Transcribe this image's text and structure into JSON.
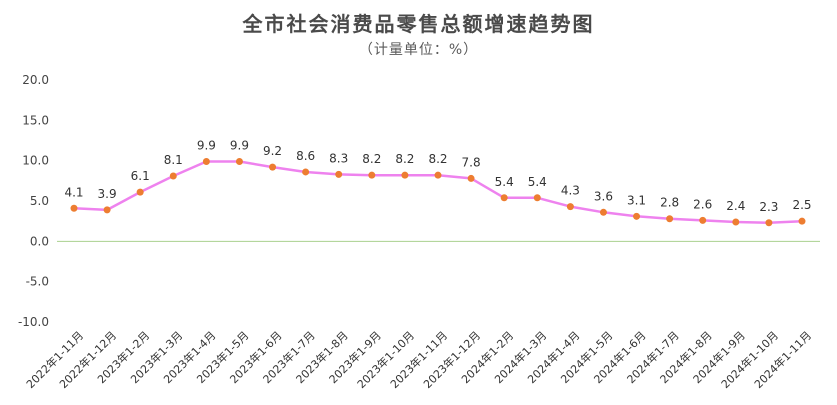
{
  "title": "全市社会消费品零售总额增速趋势图",
  "subtitle": "（计量单位：%）",
  "colors": {
    "line": "#ee82ee",
    "marker": "#ed7d31",
    "zero_line": "#a9d18e"
  },
  "chart_data": {
    "type": "line",
    "title": "全市社会消费品零售总额增速趋势图",
    "subtitle": "（计量单位：%）",
    "categories": [
      "2022年1-11月",
      "2022年1-12月",
      "2023年1-2月",
      "2023年1-3月",
      "2023年1-4月",
      "2023年1-5月",
      "2023年1-6月",
      "2023年1-7月",
      "2023年1-8月",
      "2023年1-9月",
      "2023年1-10月",
      "2023年1-11月",
      "2023年1-12月",
      "2024年1-2月",
      "2024年1-3月",
      "2024年1-4月",
      "2024年1-5月",
      "2024年1-6月",
      "2024年1-7月",
      "2024年1-8月",
      "2024年1-9月",
      "2024年1-10月",
      "2024年1-11月"
    ],
    "values": [
      4.1,
      3.9,
      6.1,
      8.1,
      9.9,
      9.9,
      9.2,
      8.6,
      8.3,
      8.2,
      8.2,
      8.2,
      7.8,
      5.4,
      5.4,
      4.3,
      3.6,
      3.1,
      2.8,
      2.6,
      2.4,
      2.3,
      2.5
    ],
    "y_ticks": [
      "20.0",
      "15.0",
      "10.0",
      "5.0",
      "0.0",
      "-5.0",
      "-10.0"
    ],
    "ylim": [
      -10,
      20
    ],
    "grid": false,
    "legend": "none"
  }
}
